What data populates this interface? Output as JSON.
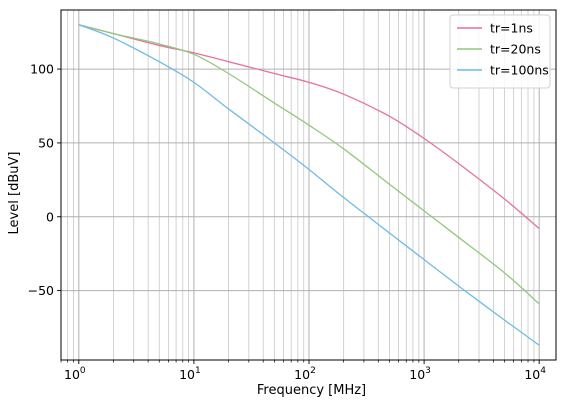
{
  "chart_data": {
    "type": "line",
    "xlabel": "Frequency [MHz]",
    "ylabel": "Level [dBuV]",
    "xscale": "log",
    "xlim": [
      0.7,
      14000
    ],
    "ylim": [
      -97,
      140
    ],
    "x_ticks": [
      {
        "value": 1,
        "base": "10",
        "exp": "0"
      },
      {
        "value": 10,
        "base": "10",
        "exp": "1"
      },
      {
        "value": 100,
        "base": "10",
        "exp": "2"
      },
      {
        "value": 1000,
        "base": "10",
        "exp": "3"
      },
      {
        "value": 10000,
        "base": "10",
        "exp": "4"
      }
    ],
    "y_ticks": [
      {
        "value": 100,
        "label": "100"
      },
      {
        "value": 50,
        "label": "50"
      },
      {
        "value": 0,
        "label": "0"
      },
      {
        "value": -50,
        "label": "−50"
      }
    ],
    "grid": {
      "major": true,
      "minor_x": true
    },
    "legend": {
      "position": "top-right"
    },
    "series": [
      {
        "name": "tr=1ns",
        "color": "#e8719a",
        "x": [
          1,
          2,
          5,
          10,
          20,
          50,
          100,
          200,
          500,
          1000,
          2000,
          5000,
          10000
        ],
        "y": [
          130,
          124,
          116,
          111,
          105,
          97,
          91,
          83,
          68,
          53,
          36,
          12,
          -8
        ]
      },
      {
        "name": "tr=20ns",
        "color": "#90c97b",
        "x": [
          1,
          2,
          5,
          10,
          20,
          50,
          100,
          200,
          500,
          1000,
          2000,
          5000,
          10000
        ],
        "y": [
          130,
          124,
          117,
          110,
          97,
          77,
          62,
          46,
          22,
          4,
          -14,
          -38,
          -59
        ]
      },
      {
        "name": "tr=100ns",
        "color": "#6cbce6",
        "x": [
          1,
          2,
          5,
          10,
          20,
          50,
          100,
          200,
          500,
          1000,
          2000,
          5000,
          10000
        ],
        "y": [
          130,
          121,
          105,
          91,
          73,
          50,
          32,
          13,
          -11,
          -29,
          -47,
          -70,
          -87
        ]
      }
    ]
  }
}
